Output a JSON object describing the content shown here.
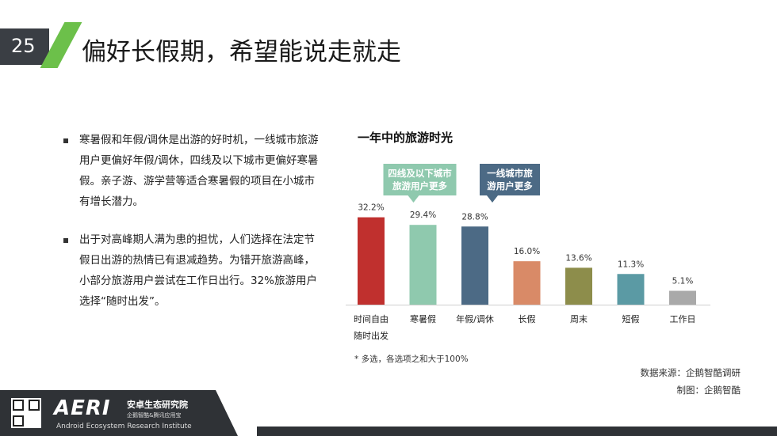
{
  "page_number": "25",
  "title": "偏好长假期，希望能说走就走",
  "bullets": [
    "寒暑假和年假/调休是出游的好时机，一线城市旅游用户更偏好年假/调休，四线及以下城市更偏好寒暑假。亲子游、游学营等适合寒暑假的项目在小城市有增长潜力。",
    "出于对高峰期人满为患的担忧，人们选择在法定节假日出游的热情已有退减趋势。为错开旅游高峰，小部分旅游用户尝试在工作日出行。32%旅游用户选择“随时出发”。"
  ],
  "chart_data": {
    "type": "bar",
    "title": "一年中的旅游时光",
    "categories": [
      [
        "时间自由",
        "随时出发"
      ],
      [
        "寒暑假"
      ],
      [
        "年假/调休"
      ],
      [
        "长假"
      ],
      [
        "周末"
      ],
      [
        "短假"
      ],
      [
        "工作日"
      ]
    ],
    "values": [
      32.2,
      29.4,
      28.8,
      16.0,
      13.6,
      11.3,
      5.1
    ],
    "value_labels": [
      "32.2%",
      "29.4%",
      "28.8%",
      "16.0%",
      "13.6%",
      "11.3%",
      "5.1%"
    ],
    "colors": [
      "#c0302e",
      "#8fc9ae",
      "#4c6a85",
      "#d98a67",
      "#8d8d4b",
      "#5b9aa4",
      "#a9a9a9"
    ],
    "ylim": [
      0,
      35
    ],
    "grid": false,
    "annotations": [
      {
        "text": [
          "四线及以下城市",
          "旅游用户更多"
        ],
        "target": 1,
        "color": "#8fc9ae"
      },
      {
        "text": [
          "一线城市旅",
          "游用户更多"
        ],
        "target": 2,
        "color": "#4c6a85"
      }
    ]
  },
  "footnote": "*   多选，各选项之和大于100%",
  "source": "数据来源：企鹅智酷调研",
  "credit": "制图：企鹅智酷",
  "footer": {
    "logo": "AERI",
    "org_cn": "安卓生态研究院",
    "org_sub": "企鹅智酷&腾讯应用宝",
    "org_en": "Android Ecosystem Research Institute"
  }
}
